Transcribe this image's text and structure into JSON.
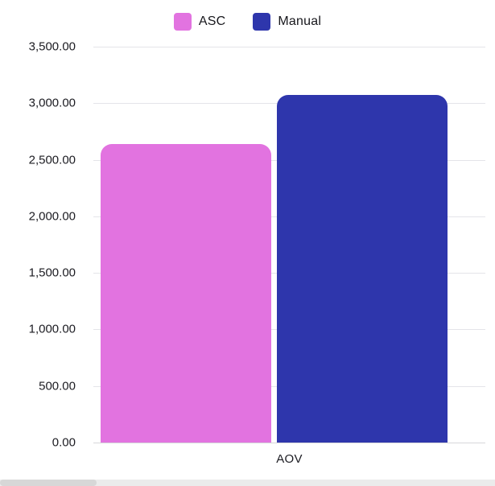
{
  "chart_data": {
    "type": "bar",
    "title": "",
    "categories": [
      "AOV"
    ],
    "series": [
      {
        "name": "ASC",
        "color": "#e273e0",
        "value": 2640
      },
      {
        "name": "Manual",
        "color": "#2e36ac",
        "value": 3070
      }
    ],
    "xlabel": "",
    "ylabel": "",
    "ylim": [
      0,
      3500
    ],
    "yticks": [
      "3,500.00",
      "3,000.00",
      "2,500.00",
      "2,000.00",
      "1,500.00",
      "1,000.00",
      "500.00",
      "0.00"
    ],
    "grid": true,
    "legend_position": "top"
  },
  "legend": {
    "items": [
      {
        "label": "ASC",
        "color": "#e273e0"
      },
      {
        "label": "Manual",
        "color": "#2e36ac"
      }
    ]
  }
}
